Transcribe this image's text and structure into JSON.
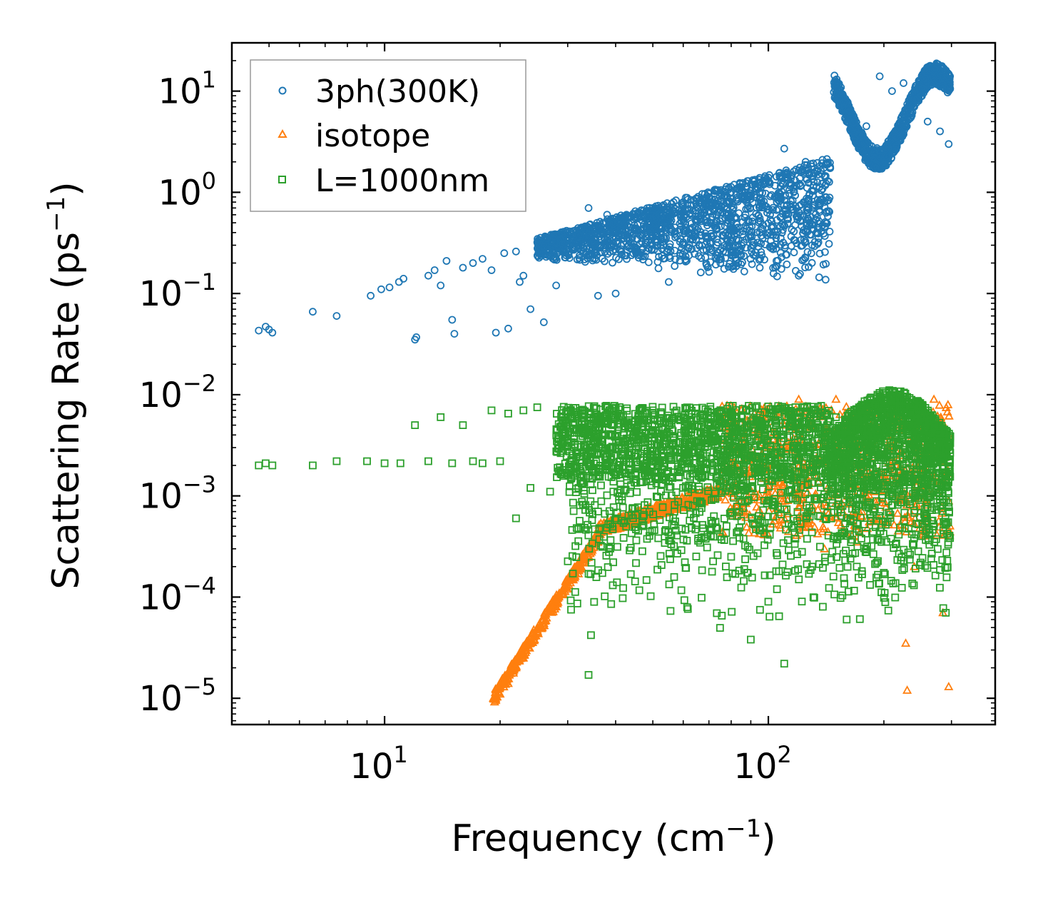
{
  "chart_data": {
    "type": "scatter",
    "xscale": "log",
    "yscale": "log",
    "xlim": [
      4.0,
      390
    ],
    "ylim": [
      5.5e-06,
      30
    ],
    "xlabel": "Frequency (cm",
    "xlabel_sup": "−1",
    "xlabel_end": ")",
    "ylabel": "Scattering Rate (ps",
    "ylabel_sup": "−1",
    "ylabel_end": ")",
    "xticks": [
      {
        "value": 10,
        "base": "10",
        "exp": "1"
      },
      {
        "value": 100,
        "base": "10",
        "exp": "2"
      }
    ],
    "yticks": [
      {
        "value": 10,
        "base": "10",
        "exp": "1"
      },
      {
        "value": 1,
        "base": "10",
        "exp": "0"
      },
      {
        "value": 0.1,
        "base": "10",
        "exp": "−1"
      },
      {
        "value": 0.01,
        "base": "10",
        "exp": "−2"
      },
      {
        "value": 0.001,
        "base": "10",
        "exp": "−3"
      },
      {
        "value": 0.0001,
        "base": "10",
        "exp": "−4"
      },
      {
        "value": 1e-05,
        "base": "10",
        "exp": "−5"
      }
    ],
    "legend_position": "top-left",
    "series": [
      {
        "name": "3ph(300K)",
        "marker": "circle",
        "color": "#1f77b4",
        "points": [
          [
            4.7,
            0.043
          ],
          [
            4.9,
            0.047
          ],
          [
            5.0,
            0.044
          ],
          [
            5.1,
            0.041
          ],
          [
            6.5,
            0.066
          ],
          [
            7.5,
            0.06
          ],
          [
            9.2,
            0.095
          ],
          [
            9.8,
            0.11
          ],
          [
            10.3,
            0.115
          ],
          [
            10.9,
            0.13
          ],
          [
            11.2,
            0.14
          ],
          [
            12.0,
            0.035
          ],
          [
            12.1,
            0.037
          ],
          [
            13.0,
            0.15
          ],
          [
            13.5,
            0.17
          ],
          [
            14.0,
            0.12
          ],
          [
            14.5,
            0.21
          ],
          [
            15.0,
            0.055
          ],
          [
            15.2,
            0.04
          ],
          [
            16.0,
            0.18
          ],
          [
            17.0,
            0.2
          ],
          [
            18.0,
            0.22
          ],
          [
            19.0,
            0.17
          ],
          [
            19.5,
            0.041
          ],
          [
            20.5,
            0.25
          ],
          [
            21.0,
            0.045
          ],
          [
            22.0,
            0.26
          ],
          [
            22.5,
            0.13
          ],
          [
            23.0,
            0.15
          ],
          [
            24.0,
            0.07
          ],
          [
            25.0,
            0.32
          ],
          [
            26.0,
            0.052
          ],
          [
            26.5,
            0.35
          ],
          [
            28.0,
            0.12
          ],
          [
            30.0,
            0.4
          ],
          [
            32.0,
            0.38
          ],
          [
            34.0,
            0.7
          ],
          [
            36.0,
            0.095
          ],
          [
            38.0,
            0.6
          ],
          [
            40.0,
            0.1
          ],
          [
            45.0,
            0.65
          ],
          [
            50.0,
            0.7
          ],
          [
            55.0,
            0.13
          ],
          [
            60.0,
            0.8
          ],
          [
            65.0,
            0.28
          ],
          [
            70.0,
            0.9
          ],
          [
            75.0,
            0.2
          ],
          [
            80.0,
            1.0
          ],
          [
            85.0,
            0.24
          ],
          [
            90.0,
            1.2
          ],
          [
            95.0,
            0.18
          ],
          [
            100.0,
            1.4
          ],
          [
            105.0,
            0.21
          ],
          [
            110.0,
            2.7
          ],
          [
            115.0,
            1.2
          ],
          [
            120.0,
            0.15
          ],
          [
            125.0,
            2.0
          ],
          [
            130.0,
            0.3
          ],
          [
            135.0,
            1.5
          ],
          [
            140.0,
            0.8
          ],
          [
            150.0,
            9.5
          ],
          [
            160.0,
            5.0
          ],
          [
            170.0,
            3.0
          ],
          [
            180.0,
            4.5
          ],
          [
            195.0,
            14.0
          ],
          [
            210.0,
            10.0
          ],
          [
            225.0,
            12.0
          ],
          [
            240.0,
            7.0
          ],
          [
            260.0,
            5.0
          ],
          [
            280.0,
            4.0
          ],
          [
            295.0,
            3.0
          ]
        ]
      },
      {
        "name": "isotope",
        "marker": "triangle",
        "color": "#ff7f0e",
        "points": [
          [
            19.2,
            1e-05
          ],
          [
            20.0,
            1.1e-05
          ],
          [
            21.0,
            1.4e-05
          ],
          [
            22.0,
            2e-05
          ],
          [
            23.0,
            2.5e-05
          ],
          [
            24.0,
            3.5e-05
          ],
          [
            25.0,
            4.5e-05
          ],
          [
            26.0,
            5.5e-05
          ],
          [
            28.0,
            8e-05
          ],
          [
            30.0,
            0.00012
          ],
          [
            32.0,
            0.00017
          ],
          [
            34.0,
            0.00025
          ],
          [
            36.0,
            0.00035
          ],
          [
            38.0,
            0.00045
          ],
          [
            40.0,
            0.0005
          ],
          [
            45.0,
            0.00052
          ],
          [
            50.0,
            0.0006
          ],
          [
            60.0,
            0.0008
          ],
          [
            70.0,
            0.0011
          ],
          [
            80.0,
            0.0018
          ],
          [
            90.0,
            0.0025
          ],
          [
            100.0,
            0.003
          ],
          [
            110.0,
            0.005
          ],
          [
            120.0,
            0.009
          ],
          [
            130.0,
            0.003
          ],
          [
            140.0,
            0.0003
          ],
          [
            150.0,
            0.009
          ],
          [
            170.0,
            0.00035
          ],
          [
            200.0,
            0.0015
          ],
          [
            220.0,
            0.0009
          ],
          [
            228.0,
            3.5e-05
          ],
          [
            230.0,
            1.2e-05
          ],
          [
            240.0,
            0.0002
          ],
          [
            255.0,
            0.0006
          ],
          [
            270.0,
            0.009
          ],
          [
            285.0,
            7e-05
          ],
          [
            295.0,
            1.3e-05
          ]
        ]
      },
      {
        "name": "L=1000nm",
        "marker": "square",
        "color": "#2ca02c",
        "points": [
          [
            4.7,
            0.002
          ],
          [
            4.9,
            0.0021
          ],
          [
            5.1,
            0.002
          ],
          [
            6.5,
            0.002
          ],
          [
            7.5,
            0.0022
          ],
          [
            9.0,
            0.0022
          ],
          [
            10.0,
            0.0021
          ],
          [
            11.0,
            0.0021
          ],
          [
            12.0,
            0.005
          ],
          [
            13.0,
            0.0022
          ],
          [
            14.0,
            0.006
          ],
          [
            15.0,
            0.0021
          ],
          [
            16.0,
            0.005
          ],
          [
            17.0,
            0.0022
          ],
          [
            18.0,
            0.0021
          ],
          [
            19.0,
            0.007
          ],
          [
            20.0,
            0.0022
          ],
          [
            21.0,
            0.0065
          ],
          [
            22.0,
            0.0006
          ],
          [
            23.0,
            0.007
          ],
          [
            24.0,
            0.0012
          ],
          [
            25.0,
            0.0075
          ],
          [
            27.0,
            0.0011
          ],
          [
            30.0,
            0.006
          ],
          [
            32.0,
            0.0012
          ],
          [
            34.0,
            0.00017
          ],
          [
            34.5,
            4.2e-05
          ],
          [
            34.0,
            1.7e-05
          ],
          [
            36.0,
            0.0007
          ],
          [
            38.0,
            0.0075
          ],
          [
            40.0,
            0.0006
          ],
          [
            45.0,
            0.0055
          ],
          [
            50.0,
            0.007
          ],
          [
            55.0,
            0.005
          ],
          [
            60.0,
            0.006
          ],
          [
            70.0,
            0.005
          ],
          [
            80.0,
            0.00025
          ],
          [
            85.0,
            0.003
          ],
          [
            90.0,
            3.8e-05
          ],
          [
            95.0,
            0.002
          ],
          [
            100.0,
            9e-05
          ],
          [
            105.0,
            0.004
          ],
          [
            110.0,
            2.2e-05
          ],
          [
            115.0,
            0.0005
          ],
          [
            120.0,
            0.003
          ],
          [
            130.0,
            0.0002
          ],
          [
            140.0,
            0.0008
          ],
          [
            150.0,
            0.006
          ],
          [
            160.0,
            6e-05
          ],
          [
            170.0,
            0.0002
          ],
          [
            180.0,
            0.007
          ],
          [
            190.0,
            0.008
          ],
          [
            200.0,
            0.009
          ],
          [
            210.0,
            0.0095
          ],
          [
            220.0,
            0.009
          ],
          [
            230.0,
            0.0095
          ],
          [
            240.0,
            0.008
          ],
          [
            250.0,
            0.0004
          ],
          [
            260.0,
            0.006
          ],
          [
            270.0,
            0.0005
          ],
          [
            280.0,
            0.004
          ],
          [
            290.0,
            7e-05
          ],
          [
            295.0,
            0.0004
          ]
        ]
      }
    ],
    "clouds": [
      {
        "series": 0,
        "xmin": 25,
        "xmax": 145,
        "ymin_lo": 0.22,
        "ymin_hi": 0.12,
        "ymax_lo": 0.35,
        "ymax_hi": 2.2,
        "n": 1600,
        "seed": 11,
        "shape": "band"
      },
      {
        "series": 0,
        "xmin": 148,
        "xmax": 298,
        "n": 900,
        "seed": 12,
        "shape": "wave"
      },
      {
        "series": 1,
        "xmin": 19.2,
        "xmax": 75,
        "n": 700,
        "seed": 21,
        "shape": "ramp"
      },
      {
        "series": 1,
        "xmin": 75,
        "xmax": 298,
        "n": 700,
        "seed": 22,
        "shape": "dense_tail"
      },
      {
        "series": 2,
        "xmin": 28,
        "xmax": 145,
        "ymin": 0.0015,
        "ymax": 0.0078,
        "n": 1400,
        "seed": 31,
        "shape": "band"
      },
      {
        "series": 2,
        "xmin": 145,
        "xmax": 298,
        "n": 1200,
        "seed": 32,
        "shape": "dome"
      },
      {
        "series": 2,
        "xmin": 30,
        "xmax": 145,
        "n": 500,
        "seed": 33,
        "shape": "drops"
      },
      {
        "series": 2,
        "xmin": 145,
        "xmax": 298,
        "n": 350,
        "seed": 34,
        "shape": "drops"
      }
    ]
  }
}
